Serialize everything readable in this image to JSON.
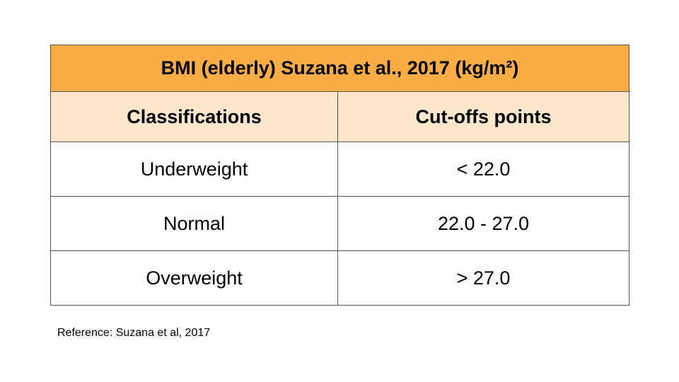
{
  "table": {
    "title": "BMI (elderly) Suzana et al., 2017 (kg/m²)",
    "headers": [
      "Classifications",
      "Cut-offs points"
    ],
    "rows": [
      {
        "classification": "Underweight",
        "cutoff": "< 22.0"
      },
      {
        "classification": "Normal",
        "cutoff": "22.0 - 27.0"
      },
      {
        "classification": "Overweight",
        "cutoff": "> 27.0"
      }
    ]
  },
  "reference": "Reference: Suzana et al, 2017",
  "colors": {
    "title_background": "#fbac42",
    "header_background": "#fce6cc",
    "border": "#555555"
  }
}
